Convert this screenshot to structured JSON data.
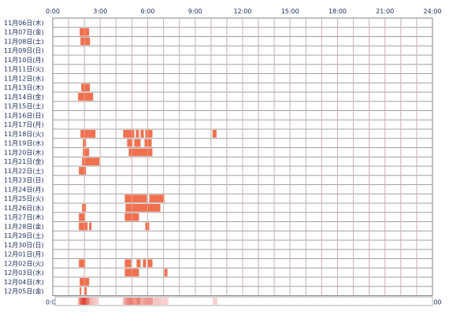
{
  "chart_data": {
    "type": "heatmap",
    "x_ticks": [
      "0:00",
      "3:00",
      "6:00",
      "9:00",
      "12:00",
      "15:00",
      "18:00",
      "21:00",
      "24:00"
    ],
    "x_range_hours": [
      0,
      24
    ],
    "rows": [
      {
        "label": "11月06日(木)",
        "blocks": []
      },
      {
        "label": "11月07日(金)",
        "blocks": [
          [
            1.7,
            2.3
          ]
        ]
      },
      {
        "label": "11月08日(土)",
        "blocks": [
          [
            1.75,
            2.35
          ]
        ]
      },
      {
        "label": "11月09日(日)",
        "blocks": []
      },
      {
        "label": "11月10日(月)",
        "blocks": []
      },
      {
        "label": "11月11日(火)",
        "blocks": []
      },
      {
        "label": "11月12日(水)",
        "blocks": []
      },
      {
        "label": "11月13日(木)",
        "blocks": [
          [
            1.8,
            2.35
          ]
        ]
      },
      {
        "label": "11月14日(金)",
        "blocks": [
          [
            1.6,
            2.55
          ]
        ]
      },
      {
        "label": "11月15日(土)",
        "blocks": []
      },
      {
        "label": "11月16日(日)",
        "blocks": []
      },
      {
        "label": "11月17日(月)",
        "blocks": []
      },
      {
        "label": "11月18日(火)",
        "blocks": [
          [
            1.75,
            2.7
          ],
          [
            4.45,
            5.15
          ],
          [
            5.25,
            5.45
          ],
          [
            5.55,
            5.75
          ],
          [
            5.85,
            6.3
          ],
          [
            10.1,
            10.35
          ]
        ]
      },
      {
        "label": "11月19日(水)",
        "blocks": [
          [
            1.9,
            2.1
          ],
          [
            4.7,
            5.05
          ],
          [
            5.15,
            5.55
          ],
          [
            5.8,
            6.25
          ]
        ]
      },
      {
        "label": "11月20日(木)",
        "blocks": [
          [
            1.9,
            2.3
          ],
          [
            4.8,
            6.3
          ]
        ]
      },
      {
        "label": "11月21日(金)",
        "blocks": [
          [
            1.85,
            2.95
          ]
        ]
      },
      {
        "label": "11月22日(土)",
        "blocks": [
          [
            1.65,
            2.1
          ]
        ]
      },
      {
        "label": "11月23日(日)",
        "blocks": []
      },
      {
        "label": "11月24日(月)",
        "blocks": []
      },
      {
        "label": "11月25日(火)",
        "blocks": [
          [
            4.55,
            5.95
          ],
          [
            6.1,
            7.05
          ]
        ]
      },
      {
        "label": "11月26日(水)",
        "blocks": [
          [
            1.85,
            2.1
          ],
          [
            4.6,
            6.8
          ]
        ]
      },
      {
        "label": "11月27日(木)",
        "blocks": [
          [
            1.65,
            2.05
          ],
          [
            4.55,
            5.45
          ]
        ]
      },
      {
        "label": "11月28日(金)",
        "blocks": [
          [
            1.65,
            2.2
          ],
          [
            2.3,
            2.45
          ],
          [
            5.85,
            6.1
          ]
        ]
      },
      {
        "label": "11月29日(土)",
        "blocks": []
      },
      {
        "label": "11月30日(日)",
        "blocks": []
      },
      {
        "label": "12月01日(月)",
        "blocks": []
      },
      {
        "label": "12月02日(火)",
        "blocks": [
          [
            1.65,
            2.05
          ],
          [
            4.55,
            4.95
          ],
          [
            5.3,
            5.55
          ],
          [
            5.7,
            5.9
          ],
          [
            6.0,
            6.3
          ]
        ]
      },
      {
        "label": "12月03日(水)",
        "blocks": [
          [
            4.55,
            5.45
          ],
          [
            7.05,
            7.25
          ]
        ]
      },
      {
        "label": "12月04日(木)",
        "blocks": [
          [
            1.7,
            2.3
          ]
        ]
      },
      {
        "label": "12月05日(金)",
        "blocks": [
          [
            1.7,
            1.8
          ],
          [
            2.0,
            2.15
          ]
        ]
      }
    ],
    "colors": {
      "block": "#f07050",
      "block_dark": "#e04030",
      "grid": "#a0a0a0",
      "border": "#808080",
      "text": "#1a2a5a"
    }
  }
}
